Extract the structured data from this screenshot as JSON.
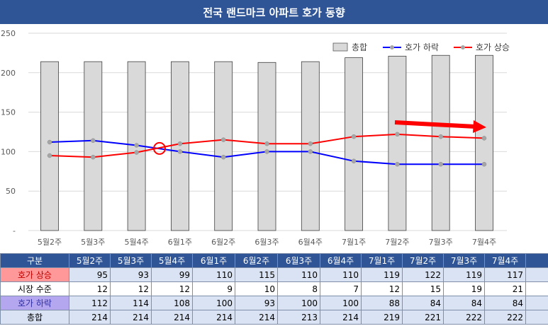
{
  "title": "전국 랜드마크 아파트 호가 동향",
  "chart_data": {
    "type": "bar+line",
    "categories": [
      "5월2주",
      "5월3주",
      "5월4주",
      "6월1주",
      "6월2주",
      "6월3주",
      "6월4주",
      "7월1주",
      "7월2주",
      "7월3주",
      "7월4주"
    ],
    "series": [
      {
        "name": "총합",
        "kind": "bar",
        "color": "#d9d9d9",
        "values": [
          214,
          214,
          214,
          214,
          214,
          213,
          214,
          219,
          221,
          222,
          222
        ]
      },
      {
        "name": "호가 하락",
        "kind": "line",
        "color": "#0000ff",
        "values": [
          112,
          114,
          108,
          100,
          93,
          100,
          100,
          88,
          84,
          84,
          84
        ]
      },
      {
        "name": "호가 상승",
        "kind": "line",
        "color": "#ff0000",
        "values": [
          95,
          93,
          99,
          110,
          115,
          110,
          110,
          119,
          122,
          119,
          117
        ]
      }
    ],
    "yticks": [
      "250",
      "200",
      "150",
      "100",
      "50",
      "-"
    ],
    "ylim": [
      0,
      250
    ],
    "grid": true,
    "legend_position": "top-right"
  },
  "table": {
    "header_label": "구분",
    "rows": [
      {
        "label": "호가 상승",
        "values": [
          95,
          93,
          99,
          110,
          115,
          110,
          110,
          119,
          122,
          119,
          117
        ]
      },
      {
        "label": "시장 수준",
        "values": [
          12,
          12,
          12,
          9,
          10,
          8,
          7,
          12,
          15,
          19,
          21
        ]
      },
      {
        "label": "호가 하락",
        "values": [
          112,
          114,
          108,
          100,
          93,
          100,
          100,
          88,
          84,
          84,
          84
        ]
      },
      {
        "label": "총합",
        "values": [
          214,
          214,
          214,
          214,
          214,
          213,
          214,
          219,
          221,
          222,
          222
        ]
      }
    ]
  },
  "colors": {
    "header": "#2f5597",
    "rise": "#ff0000",
    "fall": "#0000ff",
    "bar": "#d9d9d9",
    "annotation": "#ff0000"
  }
}
